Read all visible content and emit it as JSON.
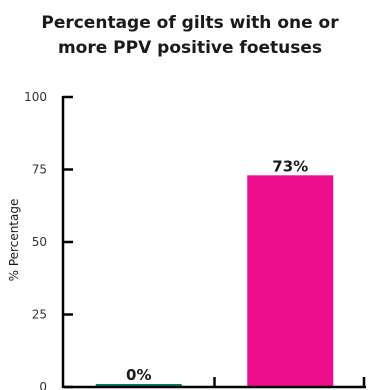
{
  "chart_data": {
    "type": "bar",
    "title_lines": [
      "Percentage of gilts with one or",
      "more PPV positive foetuses"
    ],
    "ylabel": "% Percentage",
    "ylim": [
      0,
      100
    ],
    "yticks": [
      0,
      25,
      50,
      75,
      100
    ],
    "categories": [
      "",
      ""
    ],
    "values": [
      0,
      73
    ],
    "data_labels": [
      "0%",
      "73%"
    ],
    "colors": [
      "#007a6e",
      "#ee0d8c"
    ],
    "grid": false
  }
}
